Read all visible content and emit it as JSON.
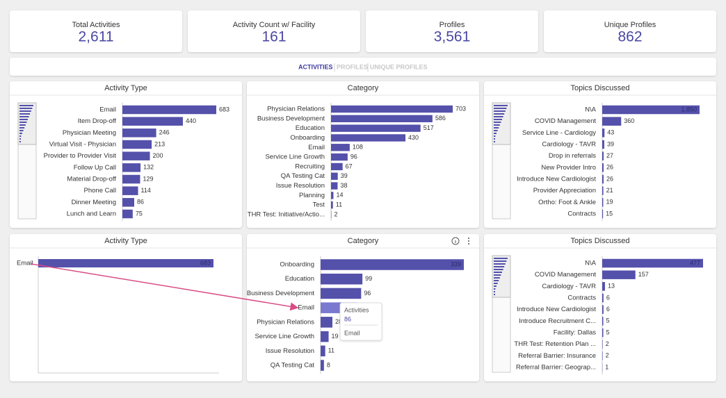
{
  "kpis": [
    {
      "label": "Total Activities",
      "value": "2,611"
    },
    {
      "label": "Activity Count w/ Facility",
      "value": "161"
    },
    {
      "label": "Profiles",
      "value": "3,561"
    },
    {
      "label": "Unique Profiles",
      "value": "862"
    }
  ],
  "tabs": [
    "ACTIVITIES",
    "PROFILES",
    "UNIQUE PROFILES"
  ],
  "panels": [
    {
      "title": "Activity Type",
      "categories": [
        "Email",
        "Item Drop-off",
        "Physician Meeting",
        "Virtual Visit - Physician",
        "Provider to Provider Visit",
        "Follow Up Call",
        "Material Drop-off",
        "Phone Call",
        "Dinner Meeting",
        "Lunch and Learn"
      ],
      "values": [
        683,
        440,
        246,
        213,
        200,
        132,
        129,
        114,
        86,
        75
      ]
    },
    {
      "title": "Category",
      "categories": [
        "Physician Relations",
        "Business Development",
        "Education",
        "Onboarding",
        "Email",
        "Service Line Growth",
        "Recruiting",
        "QA Testing Cat",
        "Issue Resolution",
        "Planning",
        "Test",
        "THR Test: Initiative/Actio..."
      ],
      "values": [
        703,
        586,
        517,
        430,
        108,
        96,
        67,
        39,
        38,
        14,
        11,
        2
      ]
    },
    {
      "title": "Topics Discussed",
      "categories": [
        "N\\A",
        "COVID Management",
        "Service Line - Cardiology",
        "Cardiology - TAVR",
        "Drop in referrals",
        "New Provider Intro",
        "Introduce New Cardiologist",
        "Provider Appreciation",
        "Ortho: Foot & Ankle",
        "Contracts"
      ],
      "values": [
        1850,
        360,
        43,
        39,
        27,
        26,
        26,
        21,
        19,
        15
      ],
      "value_labels": [
        "1,850",
        "360",
        "43",
        "39",
        "27",
        "26",
        "26",
        "21",
        "19",
        "15"
      ]
    },
    {
      "title": "Activity Type",
      "categories": [
        "Email"
      ],
      "values": [
        683
      ]
    },
    {
      "title": "Category",
      "categories": [
        "Onboarding",
        "Education",
        "Business Development",
        "Email",
        "Physician Relations",
        "Service Line Growth",
        "Issue Resolution",
        "QA Testing Cat"
      ],
      "values": [
        339,
        99,
        96,
        86,
        28,
        19,
        11,
        8
      ],
      "tooltip": {
        "title": "Activities",
        "value": "86",
        "category": "Email"
      }
    },
    {
      "title": "Topics Discussed",
      "categories": [
        "N\\A",
        "COVID Management",
        "Cardiology - TAVR",
        "Contracts",
        "Introduce New Cardiologist",
        "Introduce Recruitment C...",
        "Facility: Dallas",
        "THR Test: Retention Plan ...",
        "Referral Barrier: Insurance",
        "Referral Barrier: Geograp..."
      ],
      "values": [
        477,
        157,
        13,
        6,
        6,
        5,
        5,
        2,
        2,
        1
      ]
    }
  ]
}
